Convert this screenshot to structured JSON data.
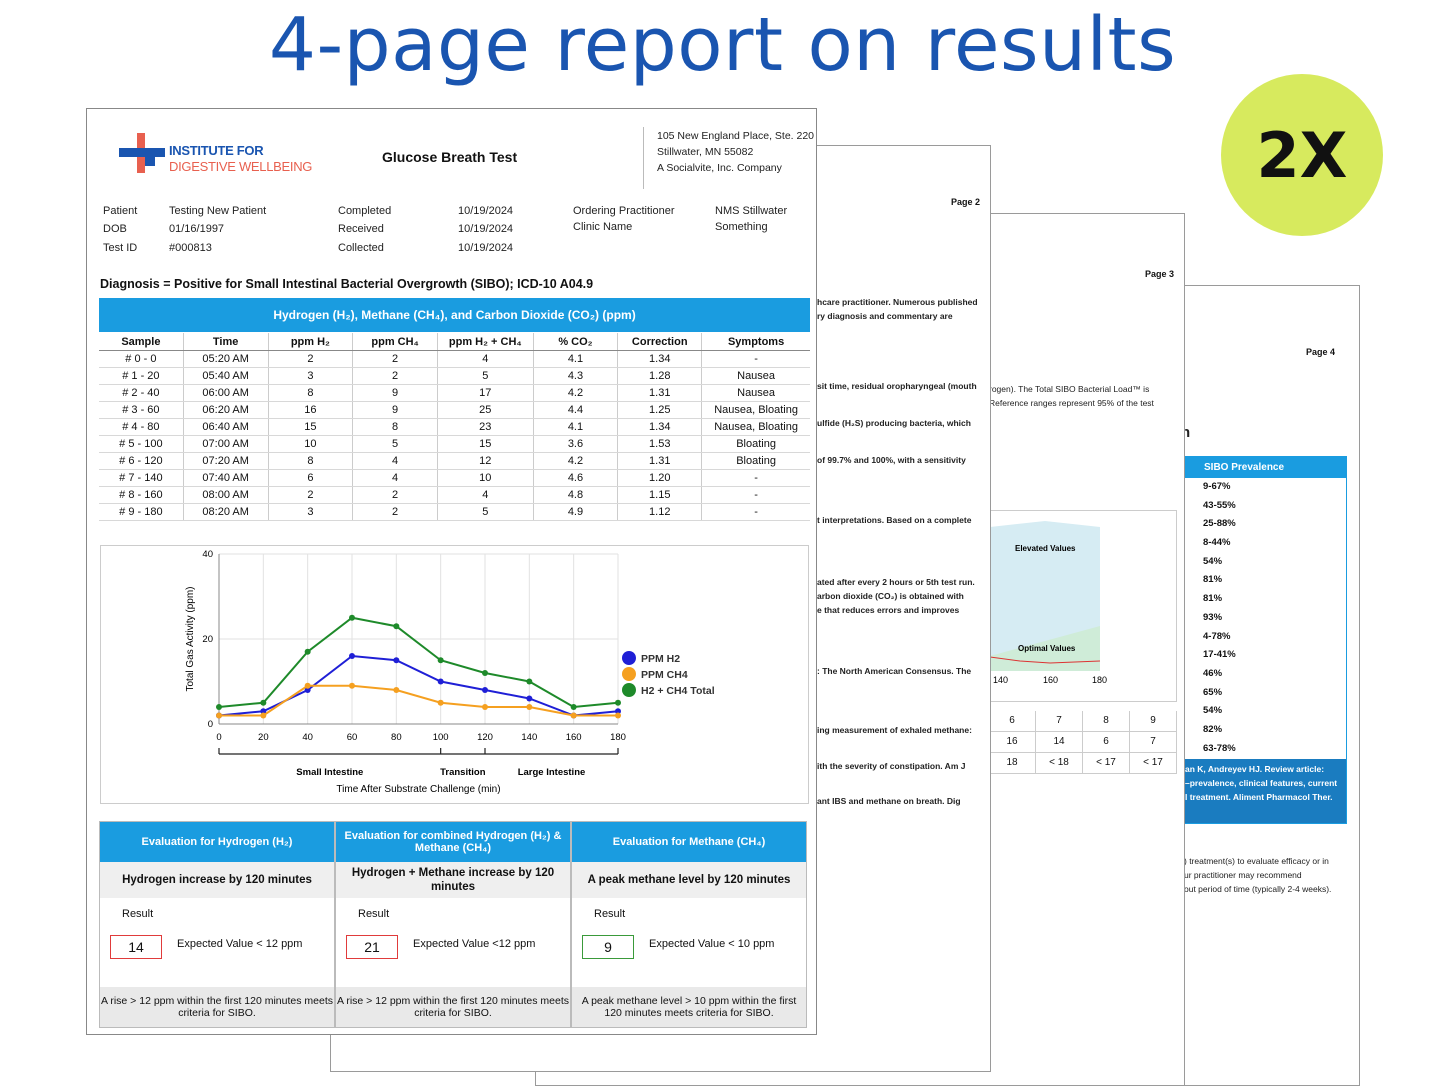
{
  "headline": "4-page report on results",
  "badge": "2X",
  "page4": {
    "page_label": "Page 4",
    "partial_heading": "h",
    "prevalence_header": "SIBO Prevalence",
    "prevalence": [
      "9-67%",
      "43-55%",
      "25-88%",
      "8-44%",
      "54%",
      "81%",
      "81%",
      "93%",
      "4-78%",
      "17-41%",
      "46%",
      "65%",
      "54%",
      "82%",
      "63-78%"
    ],
    "ref_lines": [
      "an K, Andreyev HJ. Review article:",
      "–prevalence, clinical features, current",
      "l treatment. Aliment Pharmacol Ther."
    ],
    "bottom_lines": [
      ") treatment(s) to evaluate efficacy or in",
      "ur practitioner may recommend",
      "out period of time (typically 2-4 weeks)."
    ]
  },
  "page3": {
    "page_label": "Page 3",
    "lines": [
      "rogen). The Total SIBO Bacterial Load™ is",
      "Reference ranges represent 95% of the test"
    ],
    "elevated_label": "Elevated Values",
    "optimal_label": "Optimal Values",
    "x_ticks": [
      "140",
      "160",
      "180"
    ],
    "table_row1": [
      "6",
      "7",
      "8",
      "9"
    ],
    "table_row2": [
      "16",
      "14",
      "6",
      "7"
    ],
    "table_row3": [
      "18",
      "< 18",
      "< 17",
      "< 17"
    ]
  },
  "page2": {
    "page_label": "Page 2",
    "lines": [
      "hcare practitioner. Numerous published",
      "ry diagnosis and commentary are",
      "sit time, residual oropharyngeal (mouth",
      "ulfide (H₂S) producing bacteria, which",
      "of 99.7% and 100%, with a sensitivity",
      "t interpretations. Based on a complete",
      "ated after every 2 hours or 5th test run.",
      "arbon dioxide  (CO₂) is obtained with",
      "e that reduces errors and improves",
      ": The North American Consensus. The",
      "ing measurement of exhaled methane:",
      "ith the severity of constipation. Am J",
      "ant IBS and methane on breath. Dig"
    ]
  },
  "page1": {
    "logo_line1": "INSTITUTE FOR",
    "logo_line2": "DIGESTIVE WELLBEING",
    "test_title": "Glucose Breath Test",
    "address": [
      "105 New England Place, Ste. 220",
      "Stillwater, MN 55082",
      "A Socialvite, Inc. Company"
    ],
    "patient": {
      "patient_label": "Patient",
      "patient_value": "Testing New Patient",
      "dob_label": "DOB",
      "dob_value": "01/16/1997",
      "testid_label": "Test ID",
      "testid_value": "#000813",
      "completed_label": "Completed",
      "completed_value": "10/19/2024",
      "received_label": "Received",
      "received_value": "10/19/2024",
      "collected_label": "Collected",
      "collected_value": "10/19/2024",
      "practitioner_label": "Ordering Practitioner",
      "practitioner_value": "NMS Stillwater",
      "clinic_label": "Clinic Name",
      "clinic_value": "Something"
    },
    "diagnosis": "Diagnosis = Positive for Small Intestinal Bacterial Overgrowth (SIBO); ICD-10 A04.9",
    "table_title": "Hydrogen (H₂), Methane (CH₄), and Carbon Dioxide (CO₂) (ppm)",
    "table_headers": [
      "Sample",
      "Time",
      "ppm H₂",
      "ppm CH₄",
      "ppm H₂ + CH₄",
      "% CO₂",
      "Correction",
      "Symptoms"
    ],
    "table_rows": [
      [
        "# 0 - 0",
        "05:20 AM",
        "2",
        "2",
        "4",
        "4.1",
        "1.34",
        "-"
      ],
      [
        "# 1 - 20",
        "05:40 AM",
        "3",
        "2",
        "5",
        "4.3",
        "1.28",
        "Nausea"
      ],
      [
        "# 2 - 40",
        "06:00 AM",
        "8",
        "9",
        "17",
        "4.2",
        "1.31",
        "Nausea"
      ],
      [
        "# 3 - 60",
        "06:20 AM",
        "16",
        "9",
        "25",
        "4.4",
        "1.25",
        "Nausea, Bloating"
      ],
      [
        "# 4 - 80",
        "06:40 AM",
        "15",
        "8",
        "23",
        "4.1",
        "1.34",
        "Nausea, Bloating"
      ],
      [
        "# 5 - 100",
        "07:00 AM",
        "10",
        "5",
        "15",
        "3.6",
        "1.53",
        "Bloating"
      ],
      [
        "# 6 - 120",
        "07:20 AM",
        "8",
        "4",
        "12",
        "4.2",
        "1.31",
        "Bloating"
      ],
      [
        "# 7 - 140",
        "07:40 AM",
        "6",
        "4",
        "10",
        "4.6",
        "1.20",
        "-"
      ],
      [
        "# 8 - 160",
        "08:00 AM",
        "2",
        "2",
        "4",
        "4.8",
        "1.15",
        "-"
      ],
      [
        "# 9 - 180",
        "08:20 AM",
        "3",
        "2",
        "5",
        "4.9",
        "1.12",
        "-"
      ]
    ],
    "evaluations": [
      {
        "header": "Evaluation for Hydrogen (H₂)",
        "subtitle": "Hydrogen increase by 120 minutes",
        "result_label": "Result",
        "result": "14",
        "expected": "Expected Value < 12 ppm",
        "footer": "A rise > 12 ppm within the first 120 minutes meets criteria for SIBO."
      },
      {
        "header": "Evaluation for combined Hydrogen (H₂) & Methane (CH₄)",
        "subtitle": "Hydrogen + Methane increase by 120 minutes",
        "result_label": "Result",
        "result": "21",
        "expected": "Expected Value <12 ppm",
        "footer": "A rise > 12 ppm within the first 120 minutes meets criteria for SIBO."
      },
      {
        "header": "Evaluation for Methane (CH₄)",
        "subtitle": "A peak methane level by 120 minutes",
        "result_label": "Result",
        "result": "9",
        "expected": "Expected Value < 10 ppm",
        "footer": "A peak methane level > 10 ppm within the first 120 minutes meets criteria for SIBO."
      }
    ]
  },
  "chart_data": {
    "type": "line",
    "x": [
      0,
      20,
      40,
      60,
      80,
      100,
      120,
      140,
      160,
      180
    ],
    "series": [
      {
        "name": "PPM H2",
        "color": "#1f1fd6",
        "values": [
          2,
          3,
          8,
          16,
          15,
          10,
          8,
          6,
          2,
          3
        ]
      },
      {
        "name": "PPM CH4",
        "color": "#f5a020",
        "values": [
          2,
          2,
          9,
          9,
          8,
          5,
          4,
          4,
          2,
          2
        ]
      },
      {
        "name": "H2 + CH4 Total",
        "color": "#1e8a2a",
        "values": [
          4,
          5,
          17,
          25,
          23,
          15,
          12,
          10,
          4,
          5
        ]
      }
    ],
    "xlabel": "Time After Substrate Challenge (min)",
    "ylabel": "Total Gas Activity (ppm)",
    "x_ticks": [
      0,
      20,
      40,
      60,
      80,
      100,
      120,
      140,
      160,
      180
    ],
    "y_ticks": [
      0,
      20,
      40
    ],
    "ylim": [
      0,
      40
    ],
    "xlim": [
      0,
      180
    ],
    "regions": [
      "Small Intestine",
      "Transition",
      "Large Intestine"
    ],
    "grid": true,
    "legend": "right"
  }
}
